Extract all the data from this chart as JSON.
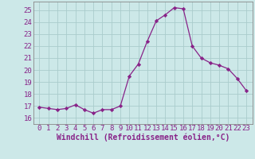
{
  "x": [
    0,
    1,
    2,
    3,
    4,
    5,
    6,
    7,
    8,
    9,
    10,
    11,
    12,
    13,
    14,
    15,
    16,
    17,
    18,
    19,
    20,
    21,
    22,
    23
  ],
  "y": [
    16.9,
    16.8,
    16.7,
    16.8,
    17.1,
    16.7,
    16.4,
    16.7,
    16.7,
    17.0,
    19.5,
    20.5,
    22.4,
    24.1,
    24.6,
    25.2,
    25.1,
    22.0,
    21.0,
    20.6,
    20.4,
    20.1,
    19.3,
    18.3
  ],
  "line_color": "#882288",
  "marker": "D",
  "marker_size": 2.2,
  "bg_color": "#cce8e8",
  "grid_color": "#aacccc",
  "xlabel": "Windchill (Refroidissement éolien,°C)",
  "ylim": [
    15.5,
    25.7
  ],
  "yticks": [
    16,
    17,
    18,
    19,
    20,
    21,
    22,
    23,
    24,
    25
  ],
  "xticks": [
    0,
    1,
    2,
    3,
    4,
    5,
    6,
    7,
    8,
    9,
    10,
    11,
    12,
    13,
    14,
    15,
    16,
    17,
    18,
    19,
    20,
    21,
    22,
    23
  ],
  "tick_color": "#882288",
  "label_color": "#882288",
  "font_size": 6.5,
  "xlabel_fontsize": 7.0
}
